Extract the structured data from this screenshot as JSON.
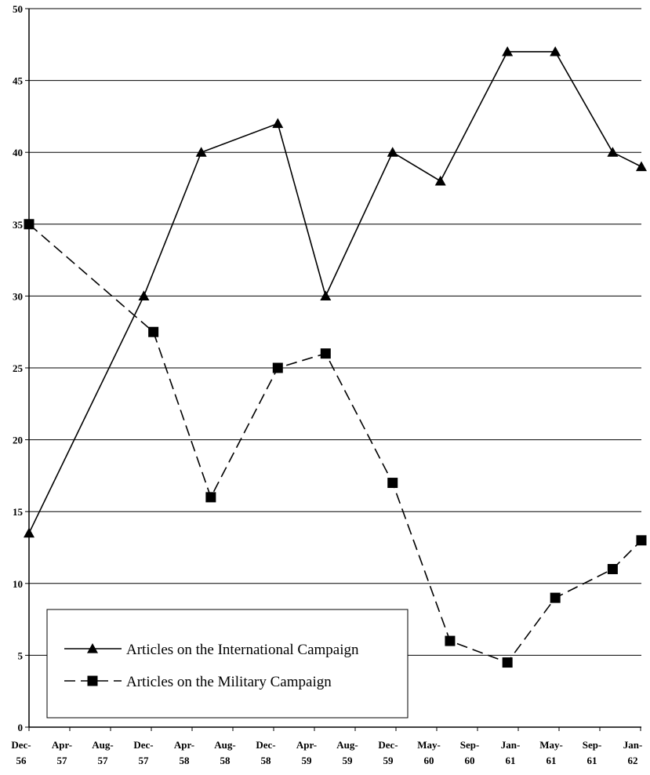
{
  "chart_data": {
    "type": "line",
    "title": "",
    "xlabel": "",
    "ylabel": "",
    "ylim": [
      0,
      50
    ],
    "y_ticks": [
      0,
      5,
      10,
      15,
      20,
      25,
      30,
      35,
      40,
      45,
      50
    ],
    "grid": true,
    "legend_placement": "bottom-left",
    "x_tick_labels": [
      [
        "Dec-",
        "56"
      ],
      [
        "Apr-",
        "57"
      ],
      [
        "Aug-",
        "57"
      ],
      [
        "Dec-",
        "57"
      ],
      [
        "Apr-",
        "58"
      ],
      [
        "Aug-",
        "58"
      ],
      [
        "Dec-",
        "58"
      ],
      [
        "Apr-",
        "59"
      ],
      [
        "Aug-",
        "59"
      ],
      [
        "Dec-",
        "59"
      ],
      [
        "May-",
        "60"
      ],
      [
        "Sep-",
        "60"
      ],
      [
        "Jan-",
        "61"
      ],
      [
        "May-",
        "61"
      ],
      [
        "Sep-",
        "61"
      ],
      [
        "Jan-",
        "62"
      ]
    ],
    "series": [
      {
        "name": "Articles on the International Campaign",
        "style": "solid",
        "marker": "triangle",
        "color": "#000000",
        "points": [
          {
            "x": "Dec-56",
            "y": 13.5
          },
          {
            "x": "Dec-57",
            "y": 30
          },
          {
            "x": "Jun-58",
            "y": 40
          },
          {
            "x": "Feb-59",
            "y": 42
          },
          {
            "x": "Jul-59",
            "y": 30
          },
          {
            "x": "Feb-60",
            "y": 40
          },
          {
            "x": "Jul-60",
            "y": 38
          },
          {
            "x": "Feb-61",
            "y": 47
          },
          {
            "x": "Jul-61",
            "y": 47
          },
          {
            "x": "Jan-62",
            "y": 40
          },
          {
            "x": "Apr-62",
            "y": 39
          }
        ]
      },
      {
        "name": "Articles on the Military Campaign",
        "style": "dashed",
        "marker": "square",
        "color": "#000000",
        "points": [
          {
            "x": "Dec-56",
            "y": 35
          },
          {
            "x": "Jan-58",
            "y": 27.5
          },
          {
            "x": "Jul-58",
            "y": 16
          },
          {
            "x": "Feb-59",
            "y": 25
          },
          {
            "x": "Jul-59",
            "y": 26
          },
          {
            "x": "Feb-60",
            "y": 17
          },
          {
            "x": "Aug-60",
            "y": 6
          },
          {
            "x": "Feb-61",
            "y": 4.5
          },
          {
            "x": "Jul-61",
            "y": 9
          },
          {
            "x": "Jan-62",
            "y": 11
          },
          {
            "x": "Apr-62",
            "y": 13
          }
        ]
      }
    ]
  }
}
